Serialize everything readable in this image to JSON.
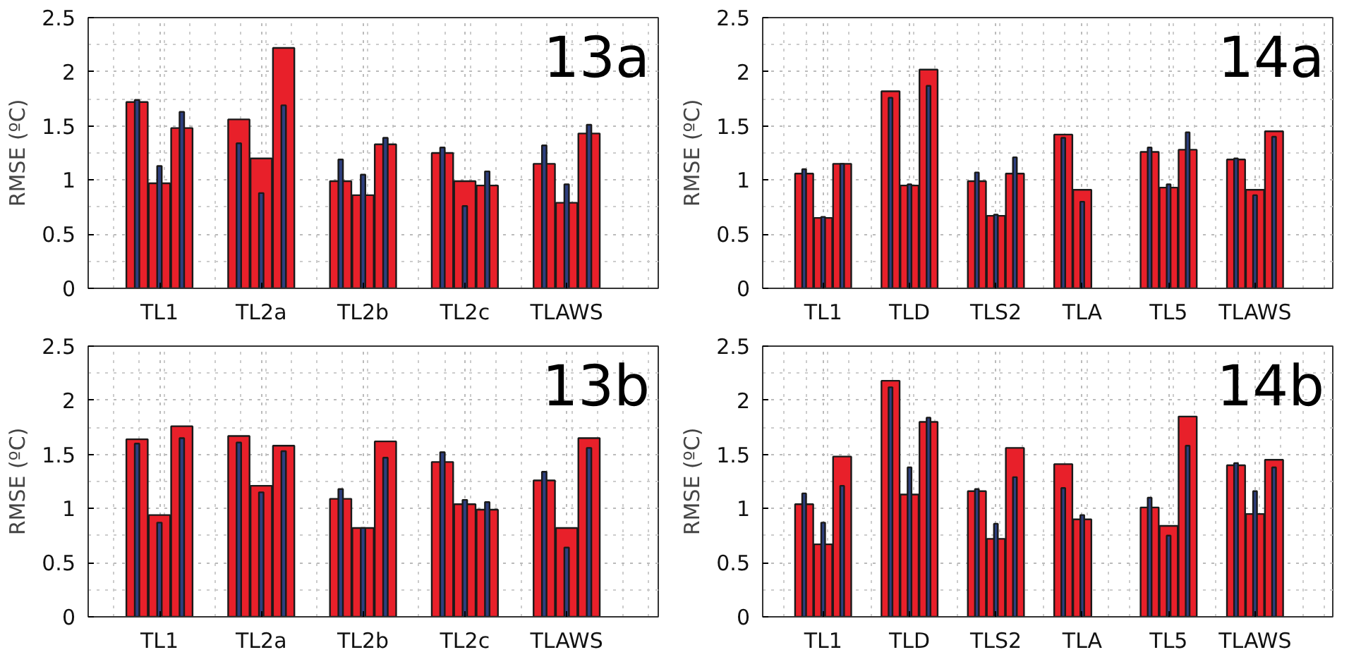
{
  "chart_data": [
    {
      "type": "bar",
      "title": "13a",
      "ylabel": "RMSE (ºC)",
      "categories": [
        "TL1",
        "TL2a",
        "TL2b",
        "TL2c",
        "TLAWS"
      ],
      "ylim": [
        0,
        2.5
      ],
      "yticks": [
        0,
        0.5,
        1,
        1.5,
        2,
        2.5
      ],
      "grid": true,
      "series": [
        {
          "color": "#e8202a",
          "values": [
            1.72,
            1.56,
            0.99,
            1.25,
            1.15
          ]
        },
        {
          "color": "#e8202a",
          "values": [
            0.97,
            1.2,
            0.86,
            0.99,
            0.79
          ]
        },
        {
          "color": "#e8202a",
          "values": [
            1.48,
            2.22,
            1.33,
            0.95,
            1.43
          ]
        },
        {
          "color": "#2e3f7f",
          "values": [
            1.74,
            1.34,
            1.19,
            1.3,
            1.32
          ]
        },
        {
          "color": "#2e3f7f",
          "values": [
            1.13,
            0.88,
            1.05,
            0.76,
            0.96
          ]
        },
        {
          "color": "#2e3f7f",
          "values": [
            1.63,
            1.69,
            1.39,
            1.08,
            1.51
          ]
        }
      ]
    },
    {
      "type": "bar",
      "title": "14a",
      "ylabel": "RMSE (ºC)",
      "categories": [
        "TL1",
        "TLD",
        "TLS2",
        "TLA",
        "TL5",
        "TLAWS"
      ],
      "ylim": [
        0,
        2.5
      ],
      "yticks": [
        0,
        0.5,
        1,
        1.5,
        2,
        2.5
      ],
      "grid": true,
      "series": [
        {
          "color": "#e8202a",
          "values": [
            1.06,
            1.82,
            0.99,
            1.42,
            1.26,
            1.19
          ]
        },
        {
          "color": "#e8202a",
          "values": [
            0.65,
            0.95,
            0.67,
            0.91,
            0.93,
            0.91
          ]
        },
        {
          "color": "#e8202a",
          "values": [
            1.15,
            2.02,
            1.06,
            null,
            1.28,
            1.45
          ]
        },
        {
          "color": "#2e3f7f",
          "values": [
            1.1,
            1.76,
            1.07,
            1.39,
            1.3,
            1.2
          ]
        },
        {
          "color": "#2e3f7f",
          "values": [
            0.66,
            0.96,
            0.68,
            0.8,
            0.96,
            0.86
          ]
        },
        {
          "color": "#2e3f7f",
          "values": [
            1.15,
            1.87,
            1.21,
            null,
            1.44,
            1.4
          ]
        }
      ]
    },
    {
      "type": "bar",
      "title": "13b",
      "ylabel": "RMSE (ºC)",
      "categories": [
        "TL1",
        "TL2a",
        "TL2b",
        "TL2c",
        "TLAWS"
      ],
      "ylim": [
        0,
        2.5
      ],
      "yticks": [
        0,
        0.5,
        1,
        1.5,
        2,
        2.5
      ],
      "grid": true,
      "series": [
        {
          "color": "#e8202a",
          "values": [
            1.64,
            1.67,
            1.09,
            1.43,
            1.26
          ]
        },
        {
          "color": "#e8202a",
          "values": [
            0.94,
            1.21,
            0.82,
            1.04,
            0.82
          ]
        },
        {
          "color": "#e8202a",
          "values": [
            1.76,
            1.58,
            1.62,
            0.99,
            1.65
          ]
        },
        {
          "color": "#2e3f7f",
          "values": [
            1.6,
            1.61,
            1.18,
            1.52,
            1.34
          ]
        },
        {
          "color": "#2e3f7f",
          "values": [
            0.87,
            1.15,
            0.82,
            1.08,
            0.64
          ]
        },
        {
          "color": "#2e3f7f",
          "values": [
            1.65,
            1.53,
            1.47,
            1.06,
            1.56
          ]
        }
      ]
    },
    {
      "type": "bar",
      "title": "14b",
      "ylabel": "RMSE (ºC)",
      "categories": [
        "TL1",
        "TLD",
        "TLS2",
        "TLA",
        "TL5",
        "TLAWS"
      ],
      "ylim": [
        0,
        2.5
      ],
      "yticks": [
        0,
        0.5,
        1,
        1.5,
        2,
        2.5
      ],
      "grid": true,
      "series": [
        {
          "color": "#e8202a",
          "values": [
            1.04,
            2.18,
            1.16,
            1.41,
            1.01,
            1.4
          ]
        },
        {
          "color": "#e8202a",
          "values": [
            0.67,
            1.13,
            0.72,
            0.9,
            0.84,
            0.95
          ]
        },
        {
          "color": "#e8202a",
          "values": [
            1.48,
            1.8,
            1.56,
            null,
            1.85,
            1.45
          ]
        },
        {
          "color": "#2e3f7f",
          "values": [
            1.14,
            2.12,
            1.18,
            1.19,
            1.1,
            1.42
          ]
        },
        {
          "color": "#2e3f7f",
          "values": [
            0.87,
            1.38,
            0.86,
            0.94,
            0.75,
            1.16
          ]
        },
        {
          "color": "#2e3f7f",
          "values": [
            1.21,
            1.84,
            1.29,
            null,
            1.58,
            1.38
          ]
        }
      ]
    }
  ]
}
